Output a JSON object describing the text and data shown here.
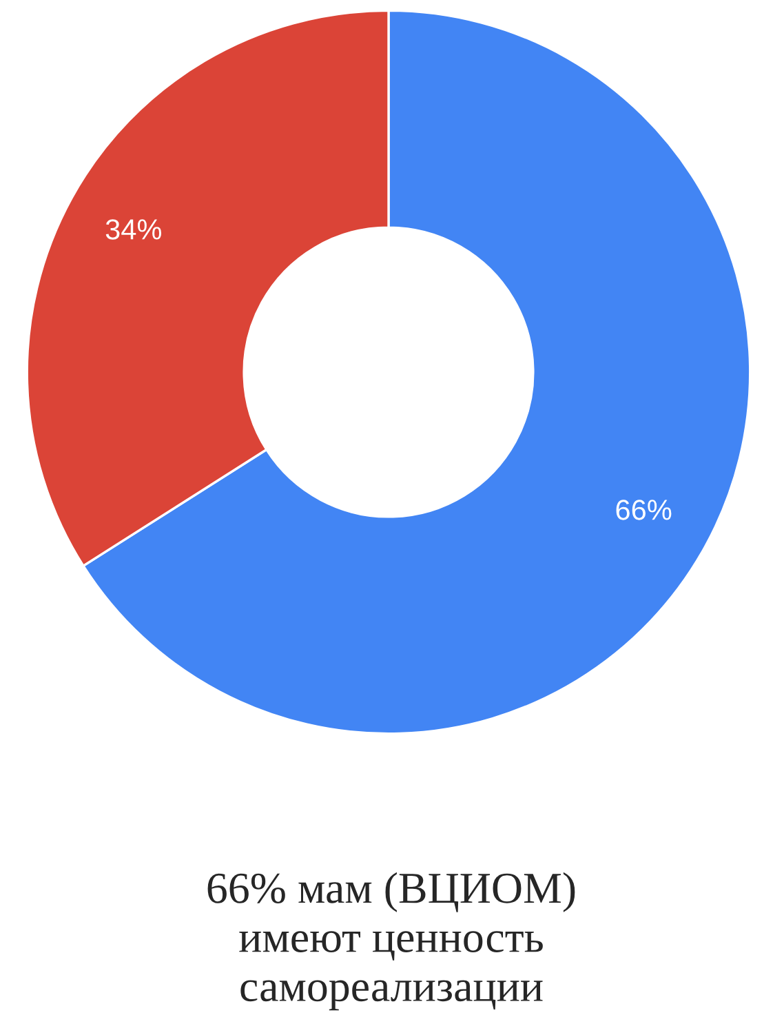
{
  "chart_data": {
    "type": "donut",
    "categories": [
      null,
      null
    ],
    "values": [
      66,
      34
    ],
    "colors": [
      "#4285f4",
      "#db4437"
    ],
    "value_labels": [
      "66%",
      "34%"
    ],
    "annotations": [
      "66% мам (ВЦИОМ)\nимеют ценность\nсамореализации"
    ]
  }
}
